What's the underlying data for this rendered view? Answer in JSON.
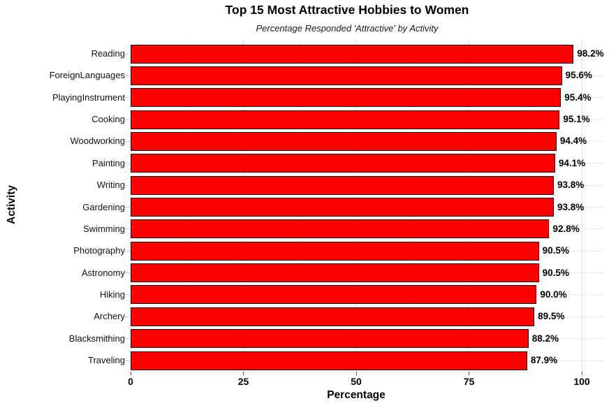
{
  "title": "Top 15 Most Attractive Hobbies to Women",
  "subtitle": "Percentage Responded 'Attractive' by Activity",
  "chart_data": {
    "type": "bar",
    "orientation": "horizontal",
    "title": "Top 15 Most Attractive Hobbies to Women",
    "subtitle": "Percentage Responded 'Attractive' by Activity",
    "xlabel": "Percentage",
    "ylabel": "Activity",
    "xlim": [
      0,
      100
    ],
    "x_ticks": [
      0,
      25,
      50,
      75,
      100
    ],
    "x_tick_labels": [
      "0",
      "25",
      "50",
      "75",
      "100"
    ],
    "categories": [
      "Reading",
      "ForeignLanguages",
      "PlayingInstrument",
      "Cooking",
      "Woodworking",
      "Painting",
      "Writing",
      "Gardening",
      "Swimming",
      "Photography",
      "Astronomy",
      "Hiking",
      "Archery",
      "Blacksmithing",
      "Traveling"
    ],
    "values": [
      98.2,
      95.6,
      95.4,
      95.1,
      94.4,
      94.1,
      93.8,
      93.8,
      92.8,
      90.5,
      90.5,
      90.0,
      89.5,
      88.2,
      87.9
    ],
    "value_labels": [
      "98.2%",
      "95.6%",
      "95.4%",
      "95.1%",
      "94.4%",
      "94.1%",
      "93.8%",
      "93.8%",
      "92.8%",
      "90.5%",
      "90.5%",
      "90.0%",
      "89.5%",
      "88.2%",
      "87.9%"
    ],
    "bar_color": "#FE0000",
    "bar_border_color": "#141414",
    "grid": {
      "vertical_major": [
        25,
        50,
        75,
        100
      ],
      "vertical_minor": [
        12.5,
        37.5,
        62.5,
        87.5
      ],
      "horizontal": "one line per category center",
      "color_major": "#e2e2e2",
      "color_minor": "#f1f1f1"
    },
    "legend": "none",
    "background": "#ffffff"
  }
}
